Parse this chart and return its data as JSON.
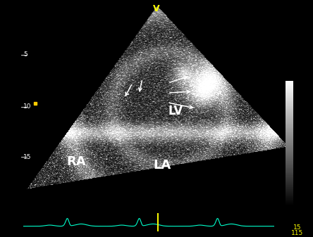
{
  "bg_color": "#c8d0dc",
  "scan_bg": "#000000",
  "title_text": "V",
  "title_color": "#ffff00",
  "label_LV": "LV",
  "label_RA": "RA",
  "label_LA": "LA",
  "label_color": "#ffffff",
  "label_fontsize": 12,
  "depth_labels": [
    "5",
    "10",
    "15"
  ],
  "depth_label_color": "#ffffff",
  "ecg_color": "#00ffcc",
  "ecg_marker_color": "#ffff00",
  "bottom_text_1": "15",
  "bottom_text_2": "115",
  "bottom_text_color": "#ffff00",
  "arrow_color": "#ffffff",
  "yellow_dot_color": "#ffcc00"
}
